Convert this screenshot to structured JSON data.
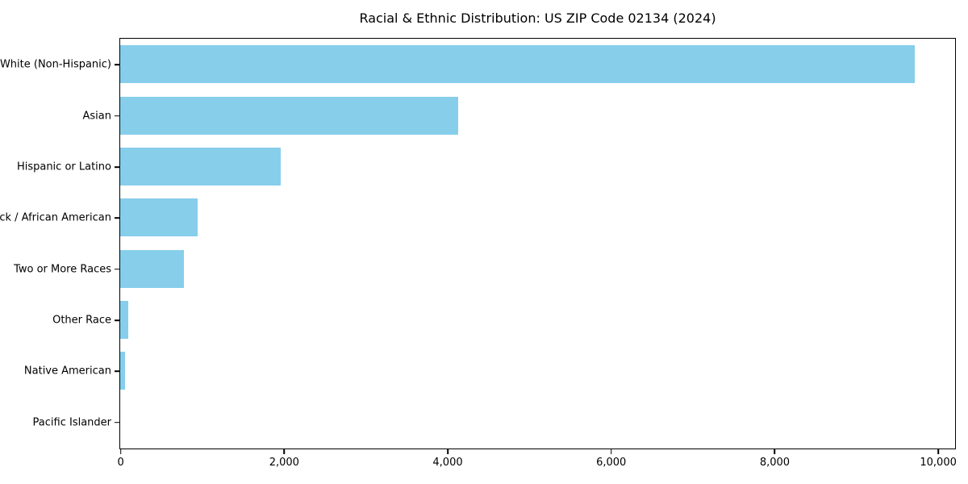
{
  "title": "Racial & Ethnic Distribution: US ZIP Code 02134 (2024)",
  "chart_data": {
    "type": "bar",
    "orientation": "horizontal",
    "title": "Racial & Ethnic Distribution: US ZIP Code 02134 (2024)",
    "xlabel": "",
    "ylabel": "",
    "categories": [
      "White (Non-Hispanic)",
      "Asian",
      "Hispanic or Latino",
      "Black / African American",
      "Two or More Races",
      "Other Race",
      "Native American",
      "Pacific Islander"
    ],
    "values": [
      9720,
      4130,
      1965,
      945,
      780,
      100,
      58,
      0
    ],
    "xlim": [
      0,
      10200
    ],
    "x_ticks": [
      0,
      2000,
      4000,
      6000,
      8000,
      10000
    ],
    "x_tick_labels": [
      "0",
      "2,000",
      "4,000",
      "6,000",
      "8,000",
      "10,000"
    ],
    "bar_color": "#87CEEB",
    "axis_color": "#000000",
    "background_color": "#ffffff",
    "grid": false,
    "legend": null
  }
}
